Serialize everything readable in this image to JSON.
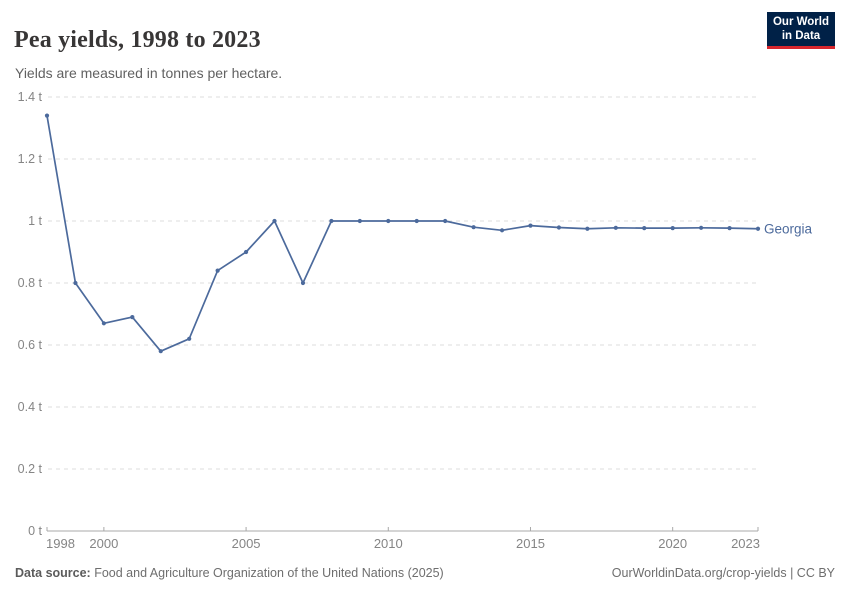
{
  "header": {
    "title": "Pea yields, 1998 to 2023",
    "subtitle": "Yields are measured in tonnes per hectare.",
    "logo": {
      "line1": "Our World",
      "line2": "in Data"
    }
  },
  "chart_data": {
    "type": "line",
    "title": "Pea yields, 1998 to 2023",
    "subtitle": "Yields are measured in tonnes per hectare.",
    "unit": "tonnes per hectare",
    "x": [
      1998,
      1999,
      2000,
      2001,
      2002,
      2003,
      2004,
      2005,
      2006,
      2007,
      2008,
      2009,
      2010,
      2011,
      2012,
      2013,
      2014,
      2015,
      2016,
      2017,
      2018,
      2019,
      2020,
      2021,
      2022,
      2023
    ],
    "series": [
      {
        "name": "Georgia",
        "color": "#4C6A9C",
        "values": [
          1.34,
          0.8,
          0.67,
          0.69,
          0.58,
          0.62,
          0.84,
          0.9,
          1.0,
          0.8,
          1.0,
          1.0,
          1.0,
          1.0,
          1.0,
          0.98,
          0.97,
          0.985,
          0.979,
          0.975,
          0.978,
          0.977,
          0.977,
          0.978,
          0.977,
          0.975
        ]
      }
    ],
    "xlim": [
      1998,
      2023
    ],
    "ylim": [
      0,
      1.4
    ],
    "xticks": [
      1998,
      2000,
      2005,
      2010,
      2015,
      2020,
      2023
    ],
    "yticks": [
      0,
      0.2,
      0.4,
      0.6,
      0.8,
      1,
      1.2,
      1.4
    ],
    "ytick_labels": [
      "0 t",
      "0.2 t",
      "0.4 t",
      "0.6 t",
      "0.8 t",
      "1 t",
      "1.2 t",
      "1.4 t"
    ],
    "grid": true,
    "legend_position": "end-of-line"
  },
  "footer": {
    "datasource_label": "Data source:",
    "datasource_text": " Food and Agriculture Organization of the United Nations (2025)",
    "link_text": "OurWorldinData.org/crop-yields | CC BY"
  },
  "colors": {
    "line": "#4C6A9C",
    "series_label": "#4C6A9C",
    "grid": "#dcdcdc",
    "axis": "#a8a8a8",
    "tick_label": "#858585",
    "title": "#383636",
    "subtitle": "#616161",
    "footer_text": "#6e6e6e",
    "logo_bg": "#002147",
    "logo_accent": "#D7262D"
  }
}
